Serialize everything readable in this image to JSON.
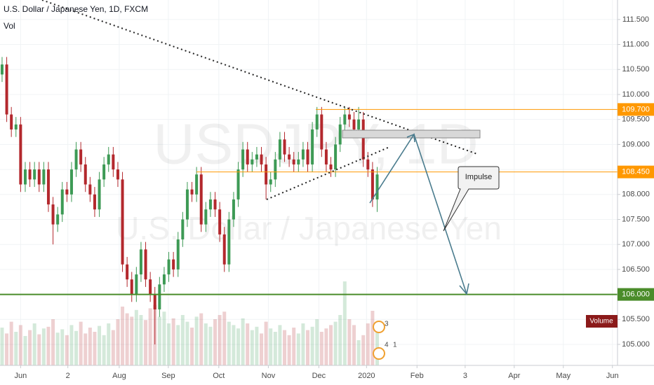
{
  "chart_data": {
    "type": "candlestick",
    "title": "U.S. Dollar / Japanese Yen, 1D, FXCM",
    "subtitle": "Vol",
    "watermark": "USDJPY, 1D",
    "watermark_subtitle": "U.S. Dollar / Japanese Yen",
    "volume_label": "Volume",
    "annotation": "Impulse",
    "events": [
      3,
      4,
      1
    ],
    "up_color": "#3d9a55",
    "down_color": "#b3282d",
    "grid": true,
    "open": [
      110.4,
      110.6,
      109.6,
      109.3,
      109.4,
      108.2,
      108.5,
      108.3,
      108.5,
      108.2,
      108.5,
      107.8,
      107.4,
      107.6,
      108.1,
      108.0,
      108.5,
      108.9,
      108.6,
      108.2,
      108.0,
      107.7,
      108.3,
      108.6,
      108.8,
      108.5,
      108.3,
      106.6,
      106.3,
      106.0,
      106.4,
      106.9,
      106.3,
      106.0,
      105.7,
      106.2,
      106.4,
      106.7,
      106.5,
      107.1,
      107.5,
      108.1,
      108.0,
      108.4,
      107.4,
      107.7,
      107.9,
      107.7,
      107.2,
      106.6,
      107.5,
      107.9,
      108.5,
      108.9,
      108.6,
      108.7,
      108.8,
      108.6,
      108.2,
      108.3,
      108.7,
      109.1,
      108.8,
      108.7,
      108.6,
      108.7,
      108.9,
      108.6,
      109.3,
      109.6,
      108.9,
      108.6,
      108.5,
      109.0,
      109.4,
      109.6,
      109.5,
      109.3,
      109.5,
      108.7,
      108.5,
      107.9
    ],
    "high": [
      110.75,
      110.75,
      109.75,
      109.55,
      109.55,
      108.65,
      108.65,
      108.65,
      108.65,
      108.65,
      108.65,
      107.95,
      107.75,
      108.25,
      108.25,
      108.65,
      109.05,
      109.05,
      108.75,
      108.35,
      108.15,
      108.45,
      108.75,
      108.95,
      108.95,
      108.65,
      108.45,
      106.75,
      106.45,
      106.55,
      107.05,
      107.05,
      106.45,
      106.15,
      106.35,
      106.55,
      106.85,
      106.85,
      107.25,
      107.65,
      108.25,
      108.25,
      108.55,
      108.55,
      107.85,
      108.05,
      108.05,
      107.85,
      107.35,
      107.65,
      108.05,
      108.65,
      109.05,
      109.05,
      108.85,
      108.95,
      108.95,
      108.75,
      108.45,
      108.85,
      109.25,
      109.25,
      108.95,
      108.85,
      108.85,
      109.05,
      109.05,
      109.45,
      109.75,
      109.75,
      109.05,
      108.75,
      109.15,
      109.55,
      109.75,
      109.75,
      109.65,
      109.75,
      109.65,
      108.85,
      108.65,
      108.55
    ],
    "low": [
      110.25,
      109.45,
      109.15,
      109.15,
      108.05,
      108.05,
      108.15,
      108.15,
      108.05,
      108.05,
      107.65,
      107.0,
      107.25,
      107.45,
      107.85,
      107.85,
      108.35,
      108.45,
      108.05,
      107.85,
      107.55,
      107.55,
      108.15,
      108.45,
      108.35,
      108.15,
      106.45,
      106.15,
      105.85,
      105.85,
      106.25,
      106.15,
      105.85,
      105.0,
      105.55,
      106.05,
      106.25,
      106.35,
      106.35,
      106.95,
      107.35,
      107.85,
      107.85,
      107.25,
      107.25,
      107.55,
      107.55,
      107.05,
      106.45,
      106.45,
      107.35,
      107.75,
      108.35,
      108.45,
      108.45,
      108.55,
      108.45,
      107.9,
      108.05,
      108.15,
      108.55,
      108.65,
      108.55,
      108.45,
      108.45,
      108.55,
      108.45,
      108.45,
      109.15,
      108.75,
      108.45,
      108.35,
      108.35,
      108.85,
      109.25,
      109.35,
      109.15,
      109.15,
      108.55,
      108.35,
      107.75,
      107.65
    ],
    "close": [
      110.6,
      109.6,
      109.3,
      109.4,
      108.2,
      108.5,
      108.3,
      108.5,
      108.2,
      108.5,
      107.8,
      107.4,
      107.6,
      108.1,
      108.0,
      108.5,
      108.9,
      108.6,
      108.2,
      108.0,
      107.7,
      108.3,
      108.6,
      108.8,
      108.5,
      108.3,
      106.6,
      106.3,
      106.0,
      106.4,
      106.9,
      106.3,
      106.0,
      105.7,
      106.2,
      106.4,
      106.7,
      106.5,
      107.1,
      107.5,
      108.1,
      108.0,
      108.4,
      107.4,
      107.7,
      107.9,
      107.7,
      107.2,
      106.6,
      107.5,
      107.9,
      108.5,
      108.9,
      108.6,
      108.7,
      108.8,
      108.6,
      108.2,
      108.3,
      108.7,
      109.1,
      108.8,
      108.7,
      108.6,
      108.7,
      108.9,
      108.6,
      109.3,
      109.6,
      108.9,
      108.6,
      108.5,
      109.0,
      109.4,
      109.6,
      109.5,
      109.3,
      109.5,
      108.7,
      108.5,
      107.9,
      108.4
    ],
    "volume": [
      45,
      38,
      52,
      40,
      48,
      35,
      42,
      50,
      37,
      44,
      46,
      55,
      39,
      43,
      36,
      48,
      41,
      52,
      38,
      45,
      40,
      47,
      36,
      50,
      42,
      55,
      70,
      62,
      58,
      66,
      60,
      54,
      68,
      72,
      58,
      64,
      50,
      56,
      48,
      60,
      52,
      45,
      58,
      62,
      50,
      46,
      55,
      60,
      64,
      52,
      48,
      44,
      56,
      50,
      42,
      46,
      38,
      52,
      44,
      40,
      48,
      42,
      36,
      45,
      38,
      50,
      42,
      46,
      55,
      40,
      44,
      48,
      52,
      60,
      100,
      55,
      48,
      30,
      36,
      50,
      65,
      45
    ],
    "xlim": [
      -0.45,
      132.9
    ],
    "ylim": [
      104.58,
      111.89
    ],
    "xticks": [
      {
        "value": 4,
        "label": "Jun"
      },
      {
        "value": 14.2,
        "label": "2"
      },
      {
        "value": 25.3,
        "label": "Aug"
      },
      {
        "value": 35.9,
        "label": "Sep"
      },
      {
        "value": 46.8,
        "label": "Oct"
      },
      {
        "value": 57.5,
        "label": "Nov"
      },
      {
        "value": 68.4,
        "label": "Dec"
      },
      {
        "value": 78.7,
        "label": "2020"
      },
      {
        "value": 89.6,
        "label": "Feb"
      },
      {
        "value": 100,
        "label": "3"
      },
      {
        "value": 110.6,
        "label": "Apr"
      },
      {
        "value": 121.2,
        "label": "May"
      },
      {
        "value": 131.8,
        "label": "Jun"
      }
    ],
    "yticks": [
      {
        "value": 105,
        "label": "105.000"
      },
      {
        "value": 105.5,
        "label": "105.500"
      },
      {
        "value": 106,
        "label": "106.000"
      },
      {
        "value": 106.5,
        "label": "106.500"
      },
      {
        "value": 107,
        "label": "107.000"
      },
      {
        "value": 107.5,
        "label": "107.500"
      },
      {
        "value": 108,
        "label": "108.000"
      },
      {
        "value": 108.5,
        "label": "108.500"
      },
      {
        "value": 109,
        "label": "109.000"
      },
      {
        "value": 109.5,
        "label": "109.500"
      },
      {
        "value": 110,
        "label": "110.000"
      },
      {
        "value": 110.5,
        "label": "110.500"
      },
      {
        "value": 111,
        "label": "111.000"
      },
      {
        "value": 111.5,
        "label": "111.500"
      }
    ],
    "levels": [
      {
        "value": 109.7,
        "label": "109.700",
        "color": "#ff9800"
      },
      {
        "value": 108.45,
        "label": "108.450",
        "color": "#ff9800"
      },
      {
        "value": 106,
        "label": "106.000",
        "color": "#4a8c2a"
      }
    ]
  }
}
